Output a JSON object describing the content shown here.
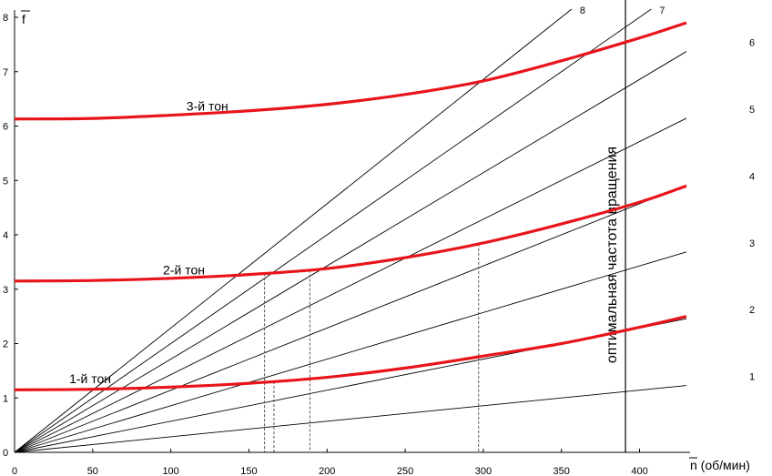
{
  "chart_data": {
    "type": "line",
    "title": "",
    "xlabel": "n (об/мин)",
    "ylabel": "f",
    "xlim": [
      0,
      430
    ],
    "ylim": [
      0,
      8
    ],
    "x_ticks": [
      0,
      50,
      100,
      150,
      200,
      250,
      300,
      350,
      400
    ],
    "y_ticks": [
      0,
      1,
      2,
      3,
      4,
      5,
      6,
      7,
      8
    ],
    "grid": false,
    "legend": "none",
    "colors": {
      "tone": "#e8141b",
      "ray": "#000000",
      "dashed": "#555555"
    },
    "harmonic_rays": [
      {
        "name": "1",
        "slope_per_rpm": 0.002857
      },
      {
        "name": "2",
        "slope_per_rpm": 0.005714
      },
      {
        "name": "3",
        "slope_per_rpm": 0.008571
      },
      {
        "name": "4",
        "slope_per_rpm": 0.011429
      },
      {
        "name": "5",
        "slope_per_rpm": 0.014286
      },
      {
        "name": "6",
        "slope_per_rpm": 0.017143
      },
      {
        "name": "7",
        "slope_per_rpm": 0.02
      },
      {
        "name": "8",
        "slope_per_rpm": 0.022857
      }
    ],
    "series": [
      {
        "name": "1-й тон",
        "x": [
          0,
          50,
          100,
          150,
          200,
          250,
          300,
          350,
          400,
          430
        ],
        "y": [
          1.15,
          1.16,
          1.2,
          1.27,
          1.38,
          1.55,
          1.77,
          2.0,
          2.3,
          2.5
        ]
      },
      {
        "name": "2-й тон",
        "x": [
          0,
          50,
          100,
          150,
          200,
          250,
          300,
          350,
          400,
          430
        ],
        "y": [
          3.15,
          3.16,
          3.2,
          3.27,
          3.38,
          3.58,
          3.85,
          4.2,
          4.6,
          4.9
        ]
      },
      {
        "name": "3-й тон",
        "x": [
          0,
          50,
          100,
          150,
          200,
          250,
          300,
          350,
          400,
          430
        ],
        "y": [
          6.13,
          6.14,
          6.2,
          6.28,
          6.4,
          6.58,
          6.83,
          7.2,
          7.62,
          7.9
        ]
      }
    ],
    "dashed_markers_x": [
      160,
      166,
      189,
      297
    ],
    "vertical_line": {
      "x": 391,
      "label": "оптимальная частота вращения"
    }
  }
}
